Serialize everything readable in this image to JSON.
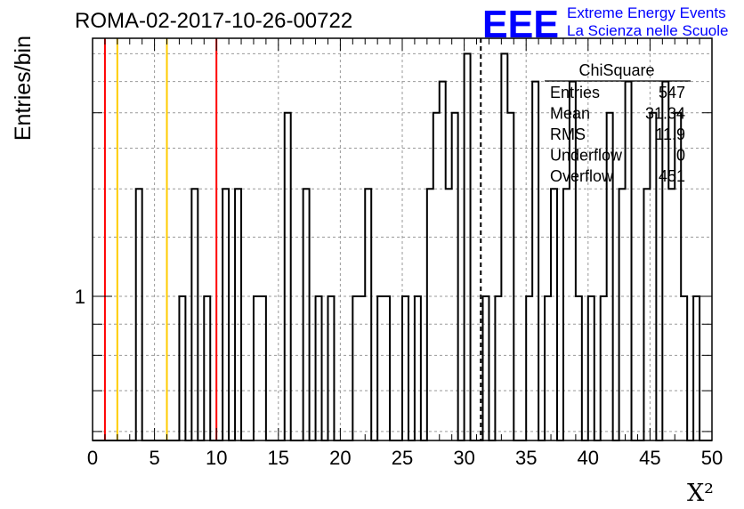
{
  "header": {
    "run_title": "ROMA-02-2017-10-26-00722",
    "logo_text": "EEE",
    "brand_line1": "Extreme Energy Events",
    "brand_line2": "La Scienza nelle Scuole",
    "brand_color": "#0000ff"
  },
  "chart_data": {
    "type": "histogram",
    "ylabel": "Entries/bin",
    "xlabel": "X²",
    "y_log_scale": true,
    "grid": true,
    "xlim": [
      0,
      50
    ],
    "ylim": [
      0.58,
      2.65
    ],
    "bin_width": 0.5,
    "x_tick_labels": [
      "0",
      "5",
      "10",
      "15",
      "20",
      "25",
      "30",
      "35",
      "40",
      "45",
      "50"
    ],
    "y_tick_labels": [
      "1"
    ],
    "bins": [
      {
        "x": 3.5,
        "y": 1.5
      },
      {
        "x": 7,
        "y": 1
      },
      {
        "x": 8,
        "y": 1.5
      },
      {
        "x": 9,
        "y": 1
      },
      {
        "x": 10.5,
        "y": 1.5
      },
      {
        "x": 11.5,
        "y": 1.5
      },
      {
        "x": 13,
        "y": 1
      },
      {
        "x": 13.5,
        "y": 1
      },
      {
        "x": 15.5,
        "y": 2
      },
      {
        "x": 17,
        "y": 1.5
      },
      {
        "x": 18,
        "y": 1
      },
      {
        "x": 19,
        "y": 1
      },
      {
        "x": 21,
        "y": 1
      },
      {
        "x": 21.5,
        "y": 1
      },
      {
        "x": 22,
        "y": 1.5
      },
      {
        "x": 23,
        "y": 1
      },
      {
        "x": 23.5,
        "y": 1
      },
      {
        "x": 25,
        "y": 1
      },
      {
        "x": 26,
        "y": 1
      },
      {
        "x": 27,
        "y": 1.5
      },
      {
        "x": 27.5,
        "y": 2
      },
      {
        "x": 28,
        "y": 2.25
      },
      {
        "x": 28.5,
        "y": 1.5
      },
      {
        "x": 29,
        "y": 2
      },
      {
        "x": 30,
        "y": 2.5
      },
      {
        "x": 31.5,
        "y": 1
      },
      {
        "x": 32.5,
        "y": 1
      },
      {
        "x": 33,
        "y": 2.5
      },
      {
        "x": 33.5,
        "y": 2
      },
      {
        "x": 35,
        "y": 1
      },
      {
        "x": 35.5,
        "y": 2.25
      },
      {
        "x": 36.5,
        "y": 1
      },
      {
        "x": 37,
        "y": 1.5
      },
      {
        "x": 38,
        "y": 1.5
      },
      {
        "x": 38.5,
        "y": 2.25
      },
      {
        "x": 39,
        "y": 1
      },
      {
        "x": 40,
        "y": 1
      },
      {
        "x": 41,
        "y": 1
      },
      {
        "x": 41.5,
        "y": 2
      },
      {
        "x": 42.5,
        "y": 1.5
      },
      {
        "x": 43,
        "y": 2.25
      },
      {
        "x": 44.5,
        "y": 1.5
      },
      {
        "x": 45,
        "y": 2
      },
      {
        "x": 46,
        "y": 2.25
      },
      {
        "x": 46.5,
        "y": 1.5
      },
      {
        "x": 47,
        "y": 2
      },
      {
        "x": 47.5,
        "y": 1
      },
      {
        "x": 48.5,
        "y": 1
      }
    ],
    "markers": [
      {
        "x": 1,
        "color": "#ff0000",
        "style": "solid"
      },
      {
        "x": 2,
        "color": "#ffcc00",
        "style": "solid"
      },
      {
        "x": 6,
        "color": "#ffcc00",
        "style": "solid"
      },
      {
        "x": 10,
        "color": "#ff0000",
        "style": "solid"
      },
      {
        "x": 31.34,
        "color": "#000000",
        "style": "dashed"
      }
    ],
    "stats_box": {
      "title": "ChiSquare",
      "rows": [
        {
          "label": "Entries",
          "value": "547"
        },
        {
          "label": "Mean",
          "value": "31.34"
        },
        {
          "label": "RMS",
          "value": "11.9"
        },
        {
          "label": "Underflow",
          "value": "0"
        },
        {
          "label": "Overflow",
          "value": "451"
        }
      ]
    }
  }
}
